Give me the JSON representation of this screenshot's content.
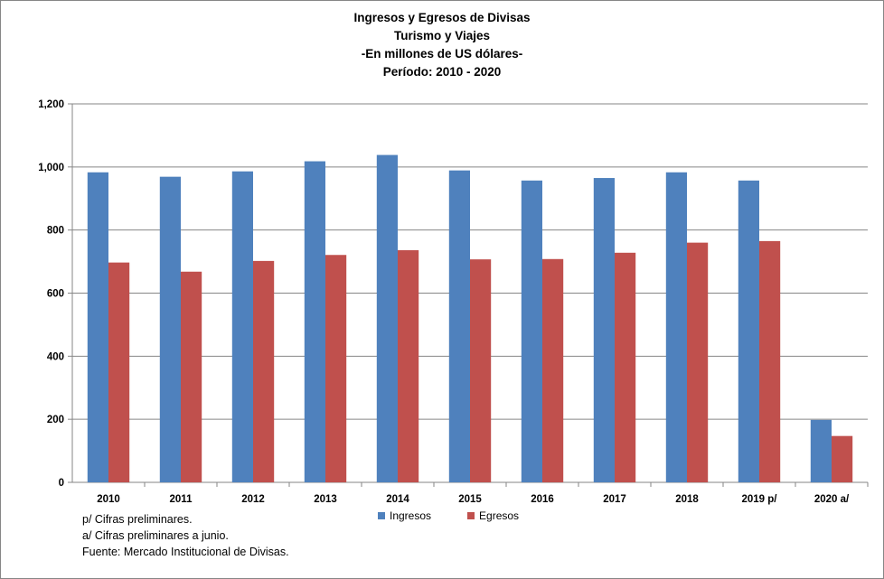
{
  "chart_data": {
    "type": "bar",
    "title_lines": [
      "Ingresos y Egresos de Divisas",
      "Turismo y Viajes",
      "-En millones de US dólares-",
      "Período: 2010 - 2020"
    ],
    "categories": [
      "2010",
      "2011",
      "2012",
      "2013",
      "2014",
      "2015",
      "2016",
      "2017",
      "2018",
      "2019 p/",
      "2020 a/"
    ],
    "series": [
      {
        "name": "Ingresos",
        "color": "#4F81BD",
        "values": [
          983,
          969,
          986,
          1018,
          1038,
          989,
          957,
          965,
          983,
          957,
          198
        ]
      },
      {
        "name": "Egresos",
        "color": "#C0504D",
        "values": [
          697,
          668,
          702,
          721,
          736,
          707,
          708,
          728,
          760,
          765,
          147
        ]
      }
    ],
    "yticks": [
      "0",
      "200",
      "400",
      "600",
      "800",
      "1,000",
      "1,200"
    ],
    "ylim": [
      0,
      1200
    ],
    "grid": true,
    "legend_position": "bottom"
  },
  "notes": [
    "p/ Cifras preliminares.",
    "a/ Cifras preliminares a junio.",
    "Fuente:  Mercado Institucional de Divisas."
  ]
}
